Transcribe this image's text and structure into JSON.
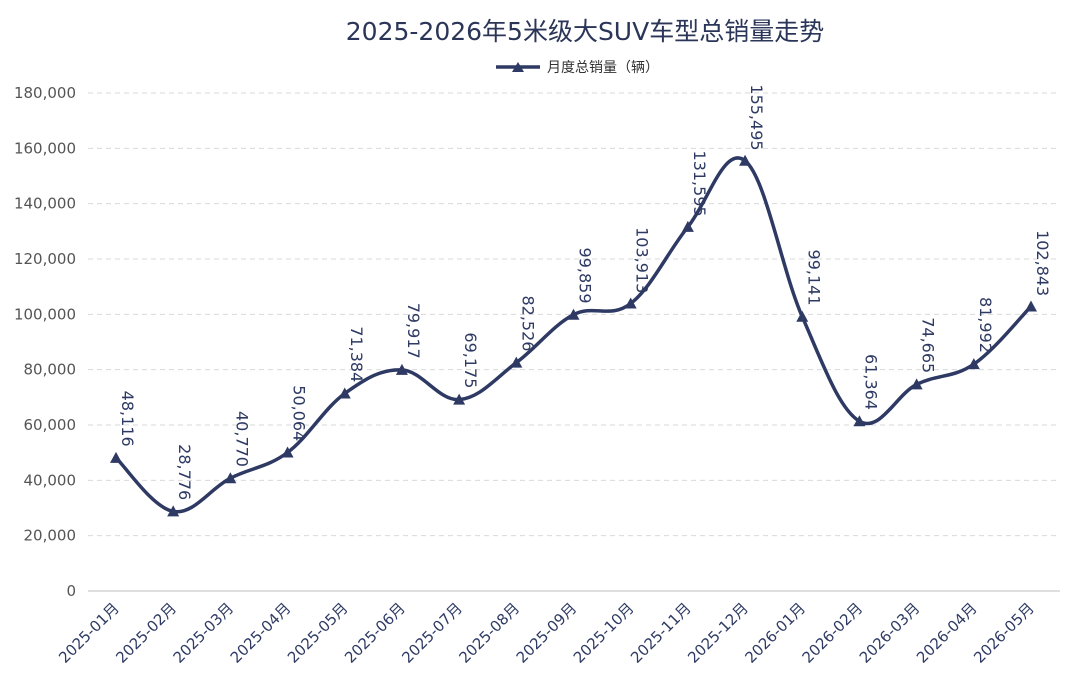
{
  "chart_data": {
    "type": "line",
    "title": "2025-2026年5米级大SUV车型总销量走势",
    "legend_position": "top-center",
    "grid": true,
    "categories": [
      "2025-01月",
      "2025-02月",
      "2025-03月",
      "2025-04月",
      "2025-05月",
      "2025-06月",
      "2025-07月",
      "2025-08月",
      "2025-09月",
      "2025-10月",
      "2025-11月",
      "2025-12月",
      "2026-01月",
      "2026-02月",
      "2026-03月",
      "2026-04月",
      "2026-05月"
    ],
    "series": [
      {
        "name": "月度总销量（辆）",
        "values": [
          48116,
          28776,
          40770,
          50064,
          71384,
          79917,
          69175,
          82526,
          99859,
          103913,
          131595,
          155495,
          99141,
          61364,
          74665,
          81992,
          102843
        ],
        "labels": [
          "48,116",
          "28,776",
          "40,770",
          "50,064",
          "71,384",
          "79,917",
          "69,175",
          "82,526",
          "99,859",
          "103,913",
          "131,595",
          "155,495",
          "99,141",
          "61,364",
          "74,665",
          "81,992",
          "102,843"
        ]
      }
    ],
    "ylim": [
      0,
      180000
    ],
    "yticks": [
      0,
      20000,
      40000,
      60000,
      80000,
      100000,
      120000,
      140000,
      160000,
      180000
    ],
    "ytick_labels": [
      "0",
      "20,000",
      "40,000",
      "60,000",
      "80,000",
      "100,000",
      "120,000",
      "140,000",
      "160,000",
      "180,000"
    ],
    "colors": {
      "line": "#2e3a63"
    }
  }
}
